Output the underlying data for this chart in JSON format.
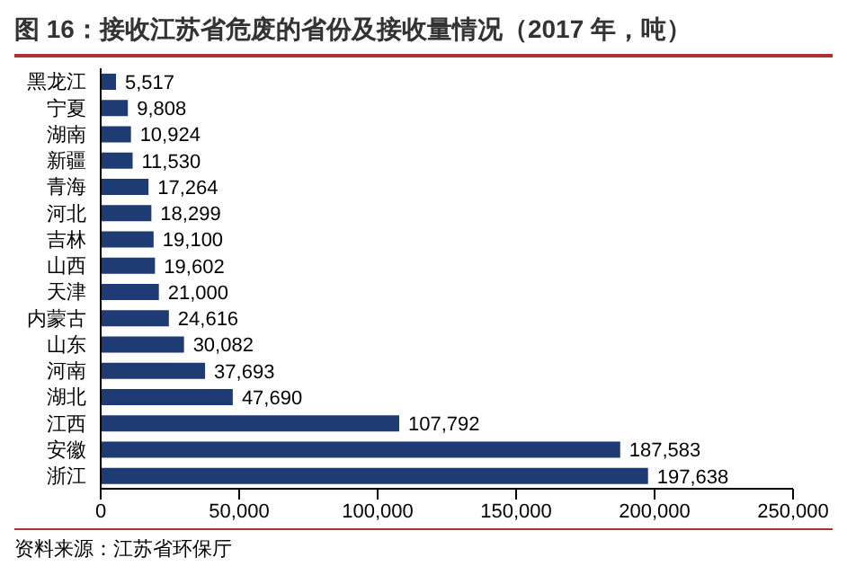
{
  "chart_data": {
    "type": "bar",
    "orientation": "horizontal",
    "title": "图 16：接收江苏省危废的省份及接收量情况（2017 年，吨）",
    "categories": [
      "黑龙江",
      "宁夏",
      "湖南",
      "新疆",
      "青海",
      "河北",
      "吉林",
      "山西",
      "天津",
      "内蒙古",
      "山东",
      "河南",
      "湖北",
      "江西",
      "安徽",
      "浙江"
    ],
    "values": [
      5517,
      9808,
      10924,
      11530,
      17264,
      18299,
      19100,
      19602,
      21000,
      24616,
      30082,
      37693,
      47690,
      107792,
      187583,
      197638
    ],
    "value_labels": [
      "5,517",
      "9,808",
      "10,924",
      "11,530",
      "17,264",
      "18,299",
      "19,100",
      "19,602",
      "21,000",
      "24,616",
      "30,082",
      "37,693",
      "47,690",
      "107,792",
      "187,583",
      "197,638"
    ],
    "color": "#1f3b73",
    "xlim": [
      0,
      250000
    ],
    "xticks": [
      0,
      {
        "value": 50000,
        "label": "50,000"
      },
      {
        "value": 100000,
        "label": "100,000"
      },
      {
        "value": 150000,
        "label": "150,000"
      },
      {
        "value": 200000,
        "label": "200,000"
      },
      {
        "value": 250000,
        "label": "250,000"
      }
    ],
    "grid": false,
    "legend": false,
    "annotations": [
      "资料来源：江苏省环保厅"
    ]
  }
}
